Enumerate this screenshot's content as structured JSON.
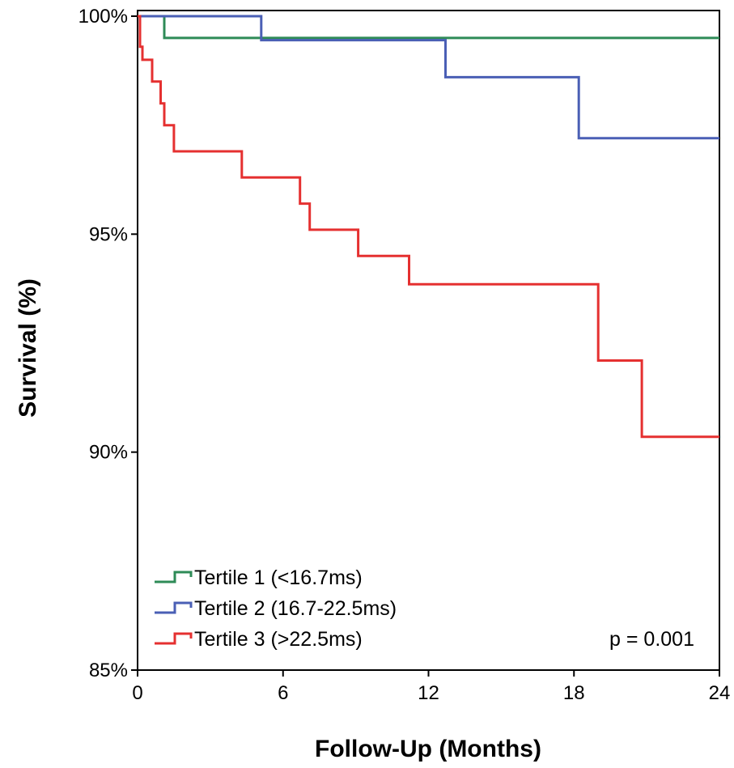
{
  "chart_data": {
    "type": "line",
    "step": true,
    "title": "",
    "xlabel": "Follow-Up (Months)",
    "ylabel": "Survival (%)",
    "xlim": [
      0,
      24
    ],
    "ylim": [
      85,
      100
    ],
    "xticks": [
      0,
      6,
      12,
      18,
      24
    ],
    "xtick_labels": [
      "0",
      "6",
      "12",
      "18",
      "24"
    ],
    "yticks": [
      85,
      90,
      95,
      100
    ],
    "ytick_labels": [
      "85%",
      "90%",
      "95%",
      "100%"
    ],
    "grid": false,
    "legend_position": "bottom-left",
    "annotation": "p = 0.001",
    "series": [
      {
        "name": "Tertile 1 (<16.7ms)",
        "color": "#2e8b57",
        "points": [
          [
            0,
            100
          ],
          [
            1.1,
            100
          ],
          [
            1.1,
            99.5
          ],
          [
            24,
            99.5
          ]
        ]
      },
      {
        "name": "Tertile 2 (16.7-22.5ms)",
        "color": "#4a5fb5",
        "points": [
          [
            0,
            100
          ],
          [
            5.1,
            100
          ],
          [
            5.1,
            99.45
          ],
          [
            12.7,
            99.45
          ],
          [
            12.7,
            98.6
          ],
          [
            18.2,
            98.6
          ],
          [
            18.2,
            97.2
          ],
          [
            24,
            97.2
          ]
        ]
      },
      {
        "name": "Tertile 3 (>22.5ms)",
        "color": "#e53030",
        "points": [
          [
            0,
            100
          ],
          [
            0.1,
            100
          ],
          [
            0.1,
            99.3
          ],
          [
            0.2,
            99.3
          ],
          [
            0.2,
            99.0
          ],
          [
            0.6,
            99.0
          ],
          [
            0.6,
            98.5
          ],
          [
            0.95,
            98.5
          ],
          [
            0.95,
            98.0
          ],
          [
            1.1,
            98.0
          ],
          [
            1.1,
            97.5
          ],
          [
            1.5,
            97.5
          ],
          [
            1.5,
            96.9
          ],
          [
            4.3,
            96.9
          ],
          [
            4.3,
            96.3
          ],
          [
            6.7,
            96.3
          ],
          [
            6.7,
            95.7
          ],
          [
            7.1,
            95.7
          ],
          [
            7.1,
            95.1
          ],
          [
            9.1,
            95.1
          ],
          [
            9.1,
            94.5
          ],
          [
            11.2,
            94.5
          ],
          [
            11.2,
            93.85
          ],
          [
            19,
            93.85
          ],
          [
            19,
            92.1
          ],
          [
            20.8,
            92.1
          ],
          [
            20.8,
            90.35
          ],
          [
            24,
            90.35
          ]
        ]
      }
    ]
  }
}
